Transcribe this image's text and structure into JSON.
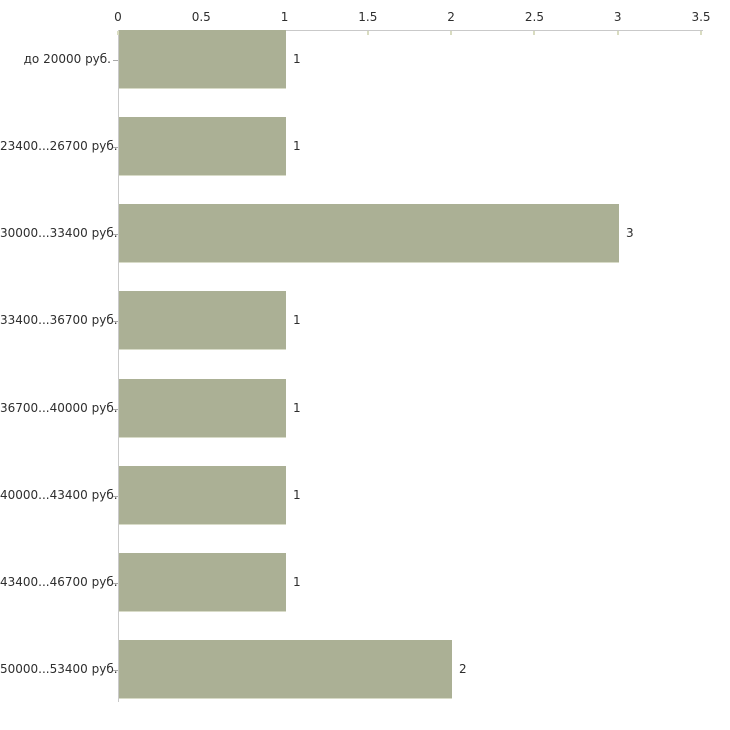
{
  "chart_data": {
    "type": "bar",
    "orientation": "horizontal",
    "title": "",
    "xlabel": "",
    "ylabel": "",
    "categories": [
      "до 20000 руб.",
      "23400...26700 руб.",
      "30000...33400 руб.",
      "33400...36700 руб.",
      "36700...40000 руб.",
      "40000...43400 руб.",
      "43400...46700 руб.",
      "50000...53400 руб."
    ],
    "values": [
      1,
      1,
      3,
      1,
      1,
      1,
      1,
      2
    ],
    "value_labels": [
      "1",
      "1",
      "3",
      "1",
      "1",
      "1",
      "1",
      "2"
    ],
    "x_ticks": [
      "0",
      "0.5",
      "1",
      "1.5",
      "2",
      "2.5",
      "3",
      "3.5"
    ],
    "x_tick_values": [
      0,
      0.5,
      1,
      1.5,
      2,
      2.5,
      3,
      3.5
    ],
    "xlim": [
      0,
      3.5
    ],
    "grid": false,
    "legend": false,
    "x_axis_position": "top",
    "colors": {
      "bar_fill": "#abb095",
      "bar_edge_light": "#d8dbc8",
      "axis_line": "#c9c9c9",
      "x_tick_mark": "#d9dcc1",
      "y_tick_mark": "#a9a9a9",
      "label_text": "#2e2e2e",
      "background": "#ffffff"
    }
  }
}
